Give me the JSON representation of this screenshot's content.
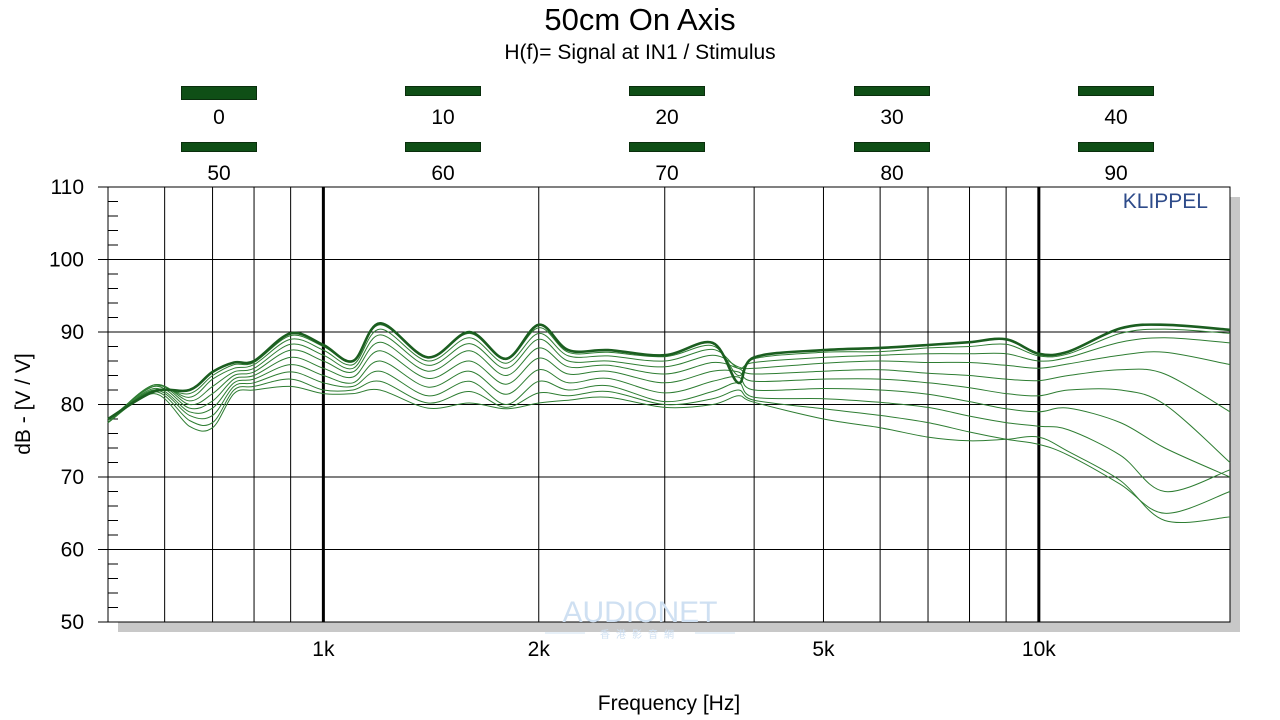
{
  "chart_data": {
    "type": "line",
    "title": "50cm On Axis",
    "subtitle": "H(f)= Signal at IN1 / Stimulus",
    "xlabel": "Frequency [Hz]",
    "ylabel": "dB - [V / V]",
    "x_scale": "log",
    "xlim": [
      500,
      18500
    ],
    "ylim": [
      50,
      110
    ],
    "x_ticks": [
      {
        "value": 1000,
        "label": "1k"
      },
      {
        "value": 2000,
        "label": "2k"
      },
      {
        "value": 5000,
        "label": "5k"
      },
      {
        "value": 10000,
        "label": "10k"
      }
    ],
    "y_ticks": [
      {
        "value": 50,
        "label": "50"
      },
      {
        "value": 60,
        "label": "60"
      },
      {
        "value": 70,
        "label": "70"
      },
      {
        "value": 80,
        "label": "80"
      },
      {
        "value": 90,
        "label": "90"
      },
      {
        "value": 100,
        "label": "100"
      },
      {
        "value": 110,
        "label": "110"
      }
    ],
    "grid": true,
    "legend_position": "top",
    "legend_rows": [
      [
        "0",
        "10",
        "20",
        "30",
        "40"
      ],
      [
        "50",
        "60",
        "70",
        "80",
        "90"
      ]
    ],
    "annotation": "KLIPPEL",
    "line_color": "#2e7d32",
    "emphasis_color": "#1b5e20",
    "series": [
      {
        "name": "0",
        "x": [
          500,
          580,
          650,
          700,
          750,
          800,
          900,
          1000,
          1100,
          1200,
          1400,
          1600,
          1800,
          2000,
          2200,
          2500,
          3000,
          3500,
          3800,
          4000,
          5000,
          6000,
          7000,
          8000,
          9000,
          10000,
          11000,
          13000,
          15000,
          18500
        ],
        "y": [
          78,
          81.8,
          82,
          84.5,
          85.8,
          86,
          89.8,
          88.2,
          86,
          91.2,
          86.5,
          90,
          86.3,
          91,
          87.5,
          87.5,
          86.8,
          88.5,
          83,
          86.5,
          87.5,
          87.8,
          88.2,
          88.6,
          89,
          87,
          87.3,
          90.5,
          91,
          90.3
        ]
      },
      {
        "name": "10",
        "x": [
          500,
          580,
          650,
          700,
          750,
          800,
          900,
          1000,
          1100,
          1200,
          1400,
          1600,
          1800,
          2000,
          2200,
          2500,
          3000,
          3500,
          3800,
          4000,
          5000,
          6000,
          7000,
          8000,
          9000,
          10000,
          11000,
          13000,
          15000,
          18500
        ],
        "y": [
          78,
          82,
          81.5,
          84,
          85.5,
          85.8,
          89.5,
          88,
          86,
          91,
          86.5,
          89.8,
          86.2,
          90.6,
          87.2,
          87.2,
          86.6,
          88.1,
          84,
          86.3,
          87.2,
          87.3,
          87.8,
          88,
          88.3,
          86.7,
          87,
          89.8,
          90.4,
          89.8
        ]
      },
      {
        "name": "20",
        "x": [
          500,
          580,
          650,
          700,
          750,
          800,
          900,
          1000,
          1100,
          1200,
          1400,
          1600,
          1800,
          2000,
          2200,
          2500,
          3000,
          3500,
          3800,
          4000,
          5000,
          6000,
          7000,
          8000,
          9000,
          10000,
          11000,
          13000,
          15000,
          18500
        ],
        "y": [
          77.8,
          82.5,
          81,
          83.5,
          85,
          85.5,
          89,
          87.5,
          85.5,
          90.4,
          86,
          89.2,
          85.7,
          89.8,
          86.7,
          86.7,
          86,
          87.6,
          85,
          85.8,
          86.5,
          86.8,
          87,
          87,
          87,
          86,
          86.5,
          88.6,
          89.2,
          88.5
        ]
      },
      {
        "name": "30",
        "x": [
          500,
          580,
          650,
          700,
          750,
          800,
          900,
          1000,
          1100,
          1200,
          1400,
          1600,
          1800,
          2000,
          2200,
          2500,
          3000,
          3500,
          3800,
          4000,
          5000,
          6000,
          7000,
          8000,
          9000,
          10000,
          11000,
          13000,
          15000,
          18500
        ],
        "y": [
          77.5,
          82.7,
          80.5,
          82.5,
          84.5,
          85,
          88.3,
          86.8,
          85,
          89.6,
          85.4,
          88.4,
          85,
          89,
          86,
          86,
          85.2,
          86.8,
          85.2,
          85,
          85.7,
          86,
          85.8,
          85.8,
          85.4,
          85,
          85.6,
          86.8,
          87.2,
          85.5
        ]
      },
      {
        "name": "40",
        "x": [
          500,
          580,
          650,
          700,
          750,
          800,
          900,
          1000,
          1100,
          1200,
          1400,
          1600,
          1800,
          2000,
          2200,
          2500,
          3000,
          3500,
          3800,
          4000,
          5000,
          6000,
          7000,
          8000,
          9000,
          10000,
          11000,
          13000,
          15000,
          18500
        ],
        "y": [
          77.5,
          82.7,
          80,
          81.5,
          84,
          84.5,
          87.5,
          86,
          84.5,
          88.6,
          84.6,
          87.4,
          84,
          87.8,
          85.2,
          85.4,
          84.2,
          85.8,
          85,
          84.2,
          84.6,
          84.8,
          84.3,
          84,
          83.5,
          83.3,
          84,
          84.8,
          84.2,
          79
        ]
      },
      {
        "name": "50",
        "x": [
          500,
          580,
          650,
          700,
          750,
          800,
          900,
          1000,
          1100,
          1200,
          1400,
          1600,
          1800,
          2000,
          2200,
          2500,
          3000,
          3500,
          3800,
          4000,
          5000,
          6000,
          7000,
          8000,
          9000,
          10000,
          11000,
          13000,
          15000,
          18500
        ],
        "y": [
          77.5,
          82.5,
          79.5,
          80.5,
          83.5,
          84,
          86.5,
          85,
          83.8,
          87.4,
          83.6,
          86,
          82.8,
          86.4,
          84.2,
          84.6,
          83,
          84.6,
          84.5,
          83.2,
          83.5,
          83.5,
          83,
          82.3,
          81.5,
          81.2,
          82,
          82,
          80,
          72
        ]
      },
      {
        "name": "60",
        "x": [
          500,
          580,
          650,
          700,
          750,
          800,
          900,
          1000,
          1100,
          1200,
          1400,
          1600,
          1800,
          2000,
          2200,
          2500,
          3000,
          3500,
          3800,
          4000,
          5000,
          6000,
          7000,
          8000,
          9000,
          10000,
          11000,
          13000,
          15000,
          18500
        ],
        "y": [
          77.5,
          82.2,
          79,
          79.5,
          83,
          83.5,
          85.5,
          84,
          83,
          86,
          82.4,
          84.6,
          81.4,
          84.8,
          83,
          83.6,
          81.6,
          83.2,
          83.8,
          82,
          82.2,
          82,
          81.4,
          80.4,
          79.4,
          79,
          79.5,
          77.5,
          74,
          70
        ]
      },
      {
        "name": "70",
        "x": [
          500,
          580,
          650,
          700,
          750,
          800,
          900,
          1000,
          1100,
          1200,
          1400,
          1600,
          1800,
          2000,
          2200,
          2500,
          3000,
          3500,
          3800,
          4000,
          5000,
          6000,
          7000,
          8000,
          9000,
          10000,
          11000,
          13000,
          15000,
          18500
        ],
        "y": [
          77.5,
          82,
          78.5,
          78.5,
          82.5,
          83,
          84.5,
          83,
          82.5,
          84.6,
          81.2,
          83.2,
          80,
          83.2,
          82,
          82.6,
          80.4,
          81.8,
          83,
          81,
          80.8,
          80.3,
          79.6,
          78.4,
          77.5,
          77,
          76.5,
          73,
          68,
          71
        ]
      },
      {
        "name": "80",
        "x": [
          500,
          580,
          650,
          700,
          750,
          800,
          900,
          1000,
          1100,
          1200,
          1400,
          1600,
          1800,
          2000,
          2200,
          2500,
          3000,
          3500,
          3800,
          4000,
          5000,
          6000,
          7000,
          8000,
          9000,
          10000,
          11000,
          13000,
          15000,
          18500
        ],
        "y": [
          77.5,
          81.8,
          77.8,
          77.5,
          82,
          82.5,
          83.5,
          82,
          82,
          83.2,
          80.2,
          81.8,
          79.6,
          81.6,
          81.2,
          81.8,
          80,
          80.8,
          82,
          80.6,
          79.4,
          78.5,
          77.5,
          76.2,
          75.2,
          74.5,
          73,
          69,
          65,
          68
        ]
      },
      {
        "name": "90",
        "x": [
          500,
          580,
          650,
          700,
          750,
          800,
          900,
          1000,
          1100,
          1200,
          1400,
          1600,
          1800,
          2000,
          2200,
          2500,
          3000,
          3500,
          3800,
          4000,
          5000,
          6000,
          7000,
          8000,
          9000,
          10000,
          11000,
          13000,
          15000,
          18500
        ],
        "y": [
          77.5,
          81.5,
          77,
          76.8,
          81.5,
          82,
          82.5,
          81.5,
          81.5,
          82,
          79.5,
          80.2,
          79.4,
          80.2,
          80.6,
          81,
          79.6,
          80,
          81.2,
          80.3,
          78,
          76.8,
          75.5,
          75,
          75.2,
          75.5,
          73.5,
          69.5,
          64,
          64.5
        ]
      }
    ],
    "watermark": {
      "text": "AUDIONET",
      "sub": "香港影音網"
    }
  }
}
